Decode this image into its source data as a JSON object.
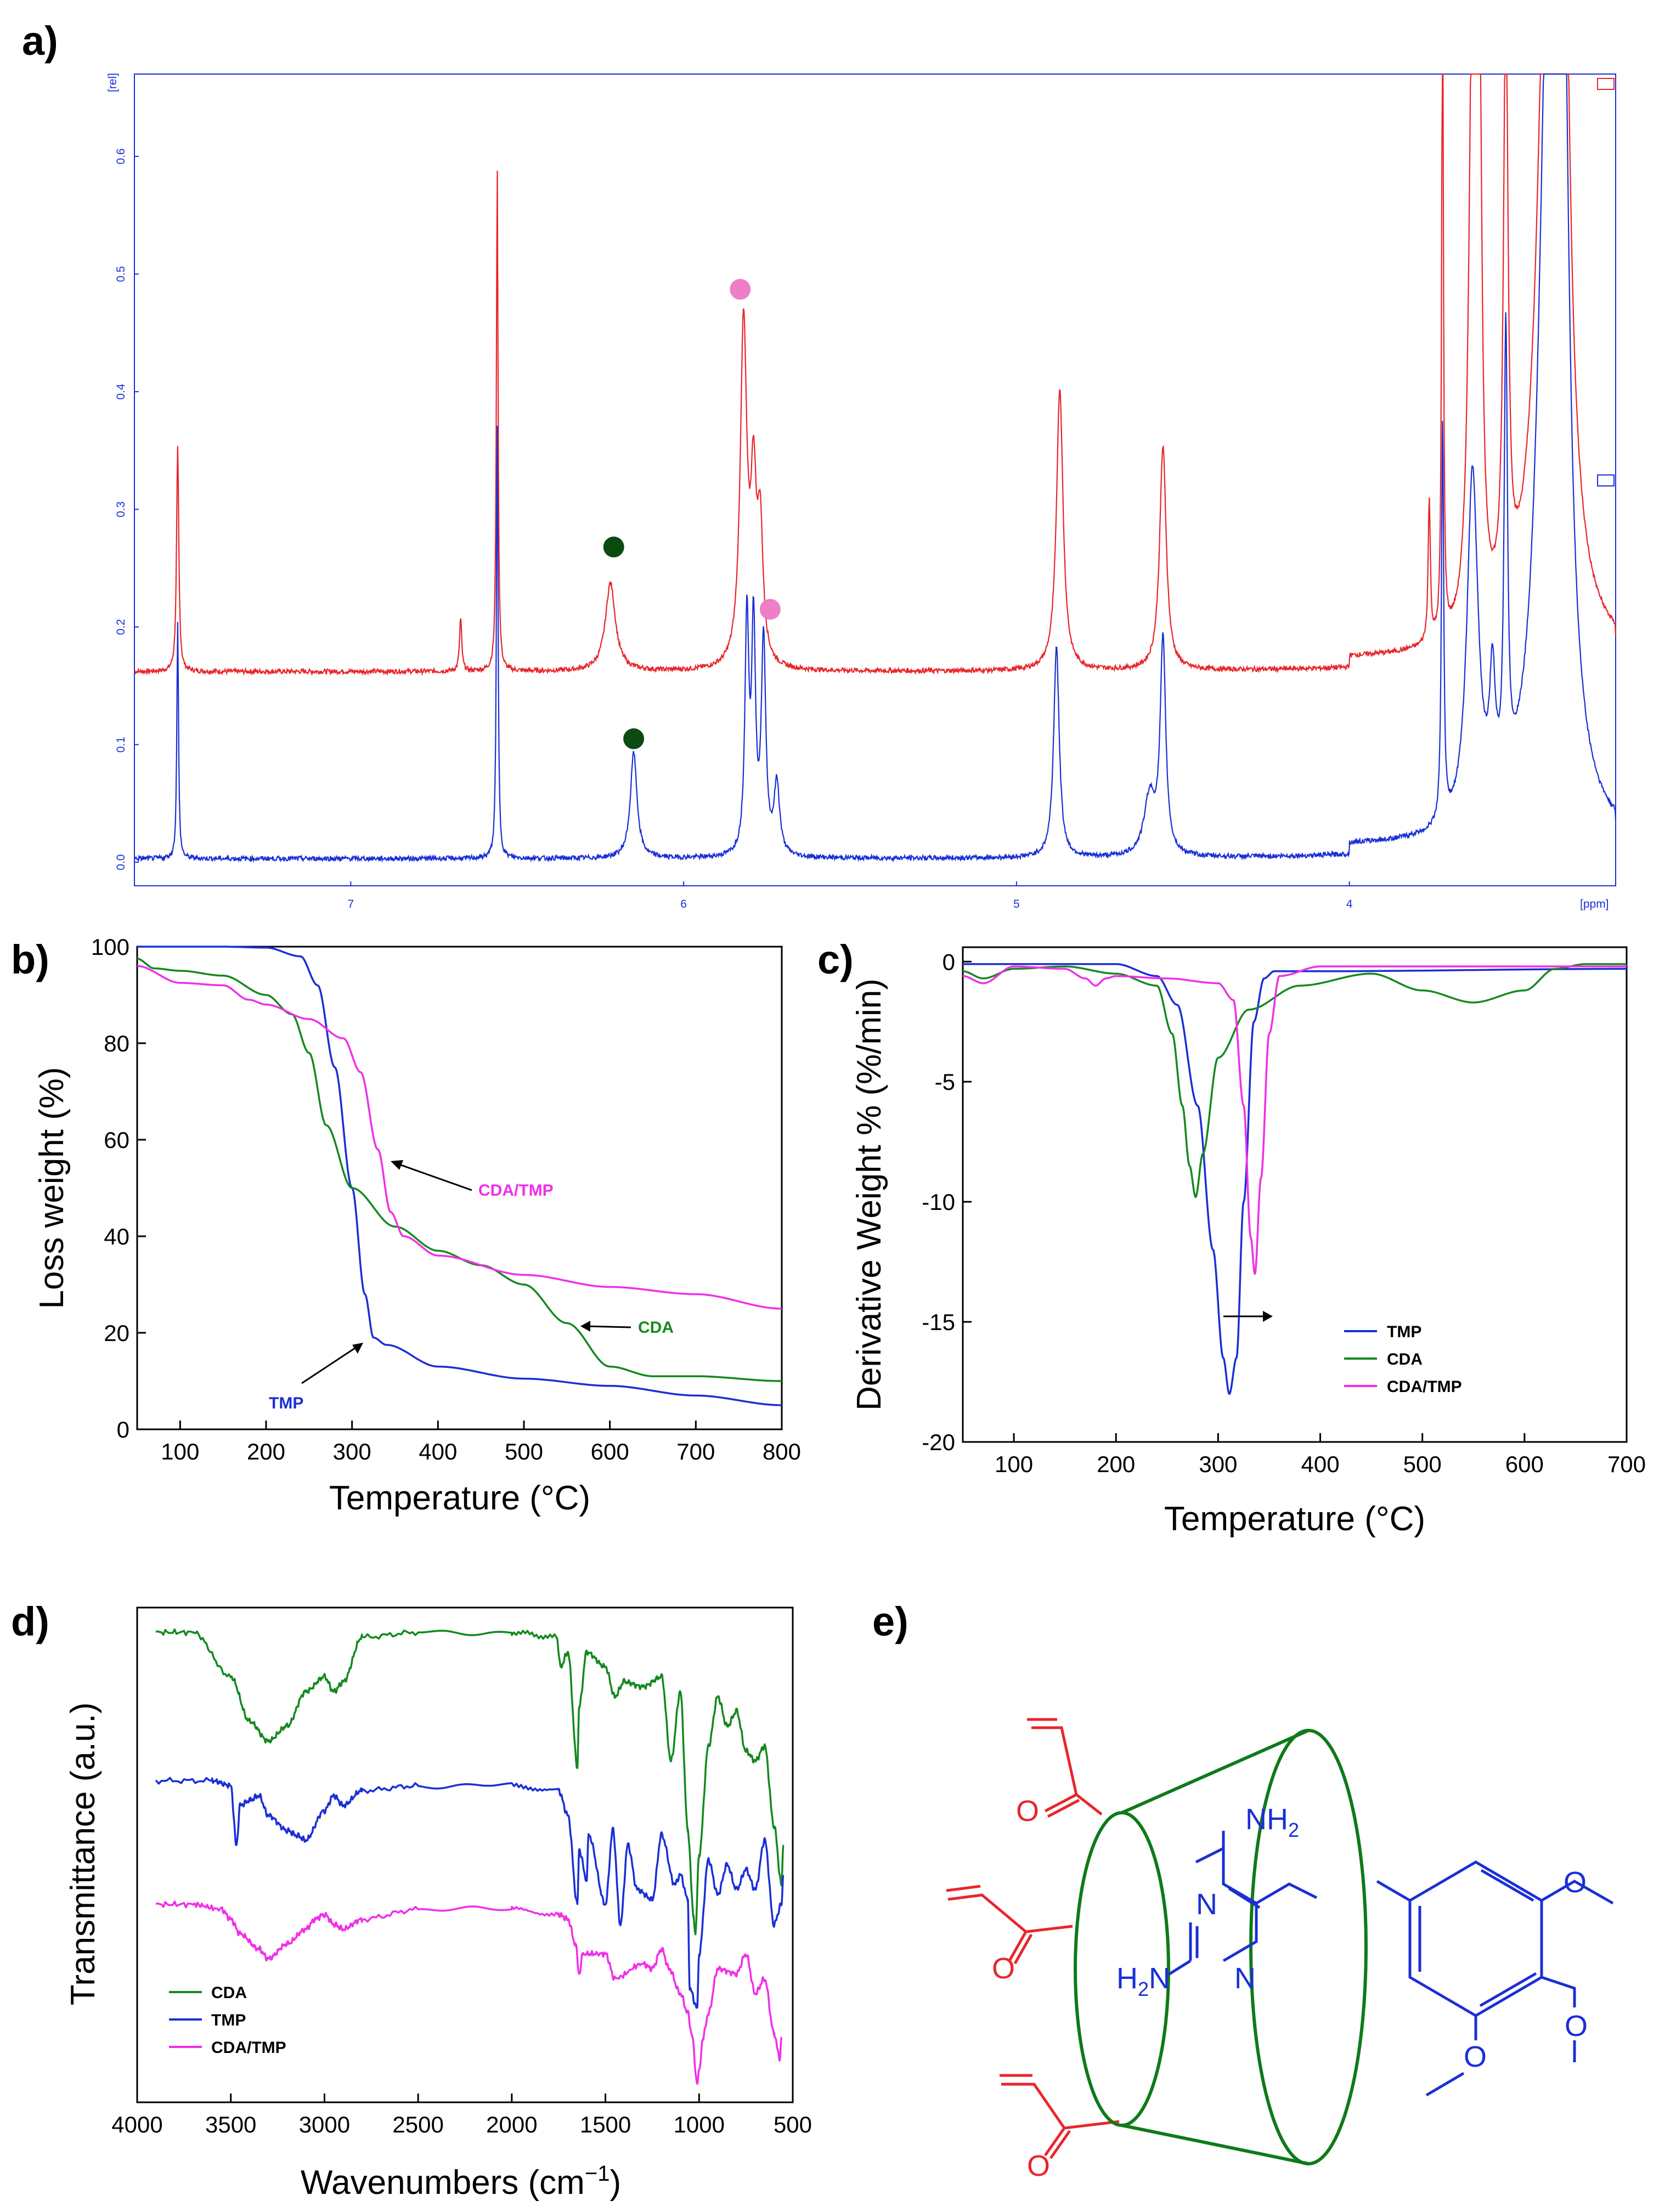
{
  "panels": {
    "a": "a)",
    "b": "b)",
    "c": "c)",
    "d": "d)",
    "e": "e)"
  },
  "colors": {
    "red": "#e8262b",
    "blue": "#1a2fd6",
    "green": "#14891e",
    "magenta": "#f02fe8",
    "dark_green": "#0b4b12",
    "pink": "#ee7fc7",
    "molecule_green": "#0f7a1a"
  },
  "chart_data": [
    {
      "id": "a",
      "type": "line",
      "title": "",
      "xlabel": "[ppm]",
      "ylabel": "[rel]",
      "xlim": [
        7.65,
        3.2
      ],
      "ylim": [
        -0.02,
        0.67
      ],
      "x_reversed": true,
      "xticks": [
        7,
        6,
        5,
        4
      ],
      "yticks": [
        0.0,
        0.1,
        0.2,
        0.3,
        0.4,
        0.5,
        0.6
      ],
      "ytick_labels": [
        "0.0",
        "0.1",
        "0.2",
        "0.3",
        "0.4",
        "0.5",
        "0.6"
      ],
      "series": [
        {
          "name": "upper spectrum",
          "color": "red",
          "baseline": 0.162,
          "peaks": [
            [
              7.52,
              0.19,
              0.004
            ],
            [
              6.67,
              0.045,
              0.004
            ],
            [
              6.56,
              0.43,
              0.003
            ],
            [
              6.22,
              0.075,
              0.018
            ],
            [
              5.82,
              0.29,
              0.012
            ],
            [
              5.79,
              0.14,
              0.01
            ],
            [
              5.77,
              0.11,
              0.01
            ],
            [
              4.87,
              0.24,
              0.012
            ],
            [
              4.56,
              0.19,
              0.012
            ],
            [
              3.76,
              0.12,
              0.004
            ],
            [
              3.72,
              0.6,
              0.003
            ],
            [
              3.63,
              0.55,
              0.012
            ],
            [
              3.61,
              0.5,
              0.008
            ],
            [
              3.53,
              0.52,
              0.008
            ],
            [
              3.4,
              0.7,
              0.035
            ],
            [
              3.36,
              0.6,
              0.02
            ]
          ]
        },
        {
          "name": "lower spectrum",
          "color": "blue",
          "baseline": 0.003,
          "peaks": [
            [
              7.52,
              0.2,
              0.003
            ],
            [
              6.56,
              0.37,
              0.003
            ],
            [
              6.15,
              0.09,
              0.012
            ],
            [
              5.81,
              0.2,
              0.007
            ],
            [
              5.79,
              0.19,
              0.007
            ],
            [
              5.76,
              0.18,
              0.008
            ],
            [
              5.72,
              0.06,
              0.01
            ],
            [
              4.88,
              0.18,
              0.01
            ],
            [
              4.56,
              0.18,
              0.01
            ],
            [
              4.6,
              0.05,
              0.02
            ],
            [
              3.72,
              0.34,
              0.004
            ],
            [
              3.63,
              0.3,
              0.02
            ],
            [
              3.57,
              0.1,
              0.01
            ],
            [
              3.53,
              0.38,
              0.006
            ],
            [
              3.4,
              0.72,
              0.035
            ],
            [
              3.36,
              0.62,
              0.02
            ]
          ]
        }
      ],
      "markers": [
        {
          "x": 6.21,
          "y": 0.268,
          "color": "dark_green"
        },
        {
          "x": 6.15,
          "y": 0.105,
          "color": "dark_green"
        },
        {
          "x": 5.83,
          "y": 0.487,
          "color": "pink"
        },
        {
          "x": 5.74,
          "y": 0.215,
          "color": "pink"
        }
      ]
    },
    {
      "id": "b",
      "type": "line",
      "title": "",
      "xlabel": "Temperature (°C)",
      "ylabel": "Loss weight  (%)",
      "xlim": [
        50,
        800
      ],
      "ylim": [
        0,
        100
      ],
      "xticks": [
        100,
        200,
        300,
        400,
        500,
        600,
        700,
        800
      ],
      "yticks": [
        0,
        20,
        40,
        60,
        80,
        100
      ],
      "series": [
        {
          "name": "TMP",
          "color": "blue",
          "x": [
            50,
            150,
            200,
            240,
            260,
            280,
            300,
            315,
            325,
            340,
            400,
            500,
            600,
            700,
            800
          ],
          "y": [
            100,
            100,
            99.8,
            98,
            92,
            75,
            50,
            28,
            19,
            17.5,
            13,
            10.5,
            9,
            7,
            5
          ]
        },
        {
          "name": "CDA",
          "color": "green",
          "x": [
            50,
            70,
            100,
            150,
            200,
            230,
            250,
            270,
            300,
            350,
            400,
            450,
            500,
            550,
            600,
            650,
            700,
            800
          ],
          "y": [
            97.5,
            95.5,
            95,
            94,
            90,
            86,
            78,
            63,
            50,
            42,
            37,
            34,
            30,
            22,
            13,
            11,
            11,
            10
          ]
        },
        {
          "name": "CDA/TMP",
          "color": "magenta",
          "x": [
            50,
            100,
            150,
            180,
            200,
            250,
            290,
            310,
            330,
            345,
            360,
            400,
            500,
            600,
            700,
            800
          ],
          "y": [
            96,
            92.5,
            92,
            89,
            88,
            85,
            81,
            74,
            58,
            45,
            40,
            36,
            32,
            29.5,
            28,
            25
          ]
        }
      ],
      "annotations": [
        {
          "text": "CDA/TMP",
          "color": "magenta"
        },
        {
          "text": "CDA",
          "color": "green"
        },
        {
          "text": "TMP",
          "color": "blue"
        }
      ]
    },
    {
      "id": "c",
      "type": "line",
      "title": "",
      "xlabel": "Temperature (°C)",
      "ylabel": "Derivative Weight % (%/min)",
      "xlim": [
        50,
        700
      ],
      "ylim": [
        -20,
        0.6
      ],
      "xticks": [
        100,
        200,
        300,
        400,
        500,
        600,
        700
      ],
      "yticks": [
        -20,
        -15,
        -10,
        -5,
        0
      ],
      "series": [
        {
          "name": "TMP",
          "color": "blue",
          "x": [
            50,
            200,
            240,
            260,
            280,
            295,
            305,
            311,
            318,
            325,
            335,
            345,
            355,
            400,
            700
          ],
          "y": [
            -0.1,
            -0.1,
            -0.6,
            -1.8,
            -6,
            -12,
            -16.5,
            -18,
            -16.5,
            -10,
            -2.5,
            -0.7,
            -0.4,
            -0.4,
            -0.3
          ]
        },
        {
          "name": "CDA",
          "color": "green",
          "x": [
            50,
            70,
            100,
            150,
            200,
            240,
            255,
            265,
            272,
            278,
            285,
            300,
            330,
            380,
            450,
            500,
            550,
            600,
            630,
            660,
            700
          ],
          "y": [
            -0.4,
            -0.7,
            -0.3,
            -0.2,
            -0.5,
            -1,
            -3,
            -6,
            -8.5,
            -9.8,
            -8,
            -4,
            -2,
            -1,
            -0.5,
            -1.2,
            -1.7,
            -1.2,
            -0.3,
            -0.1,
            -0.1
          ]
        },
        {
          "name": "CDA/TMP",
          "color": "magenta",
          "x": [
            50,
            70,
            100,
            150,
            170,
            180,
            190,
            200,
            250,
            300,
            315,
            325,
            332,
            336,
            342,
            350,
            360,
            400,
            700
          ],
          "y": [
            -0.6,
            -0.9,
            -0.2,
            -0.3,
            -0.7,
            -1,
            -0.7,
            -0.6,
            -0.7,
            -0.9,
            -1.6,
            -6,
            -11.5,
            -13,
            -9,
            -3,
            -0.6,
            -0.2,
            -0.2
          ]
        }
      ],
      "legend": {
        "position": "lower-right",
        "entries": [
          "TMP",
          "CDA",
          "CDA/TMP"
        ]
      }
    },
    {
      "id": "d",
      "type": "line",
      "title": "",
      "xlabel": "Wavenumbers (cm",
      "xlabel_sup": "−1",
      "xlabel_tail": ")",
      "ylabel": "Transmittance (a.u.)",
      "xlim": [
        4000,
        500
      ],
      "ylim": [
        0,
        100
      ],
      "xticks": [
        4000,
        3500,
        3000,
        2500,
        2000,
        1500,
        1000,
        500
      ],
      "series": [
        {
          "name": "CDA",
          "color": "green",
          "x": [
            3900,
            3700,
            3500,
            3400,
            3300,
            3200,
            3100,
            3000,
            2950,
            2900,
            2800,
            2500,
            2000,
            1760,
            1740,
            1700,
            1650,
            1640,
            1600,
            1500,
            1450,
            1400,
            1300,
            1200,
            1150,
            1100,
            1060,
            1030,
            1020,
            1000,
            950,
            900,
            850,
            800,
            750,
            700,
            650,
            600,
            560,
            550
          ],
          "y": [
            95,
            95,
            86,
            77,
            73,
            76,
            83,
            86,
            83,
            85,
            94,
            95,
            95,
            94,
            88,
            91,
            68,
            80,
            91,
            88,
            82,
            85,
            84,
            86,
            69,
            83,
            55,
            38,
            34,
            50,
            72,
            82,
            76,
            79,
            71,
            69,
            72,
            56,
            44,
            52
          ]
        },
        {
          "name": "TMP",
          "color": "blue",
          "x": [
            3900,
            3600,
            3500,
            3470,
            3450,
            3400,
            3350,
            3300,
            3200,
            3150,
            3100,
            3000,
            2950,
            2900,
            2800,
            2500,
            2000,
            1750,
            1700,
            1650,
            1640,
            1600,
            1590,
            1500,
            1460,
            1420,
            1380,
            1330,
            1250,
            1200,
            1130,
            1100,
            1060,
            1050,
            1010,
            1000,
            950,
            900,
            850,
            800,
            750,
            700,
            650,
            600,
            560,
            550
          ],
          "y": [
            65,
            65,
            64,
            52,
            60,
            61,
            62,
            58,
            55,
            54,
            53,
            59,
            62,
            60,
            63,
            64,
            64,
            63,
            58,
            40,
            51,
            45,
            54,
            40,
            55,
            36,
            52,
            43,
            41,
            54,
            44,
            46,
            41,
            23,
            19,
            30,
            49,
            42,
            48,
            43,
            47,
            43,
            53,
            36,
            40,
            46
          ]
        },
        {
          "name": "CDA/TMP",
          "color": "magenta",
          "x": [
            3900,
            3700,
            3550,
            3500,
            3450,
            3350,
            3300,
            3200,
            3100,
            3050,
            3000,
            2950,
            2900,
            2800,
            2500,
            2000,
            1750,
            1700,
            1660,
            1640,
            1620,
            1500,
            1450,
            1300,
            1250,
            1200,
            1160,
            1100,
            1060,
            1040,
            1010,
            1000,
            980,
            950,
            900,
            800,
            750,
            700,
            650,
            600,
            570,
            560
          ],
          "y": [
            40,
            40,
            39,
            37,
            34,
            31,
            29,
            32,
            35,
            37,
            38,
            36,
            35,
            37,
            39,
            39,
            38,
            37,
            32,
            26,
            30,
            30,
            25,
            28,
            27,
            31,
            27,
            22,
            18,
            14,
            4,
            6,
            13,
            18,
            27,
            26,
            30,
            22,
            25,
            14,
            9,
            13
          ]
        }
      ],
      "legend": {
        "position": "lower-left",
        "entries": [
          "CDA",
          "TMP",
          "CDA/TMP"
        ]
      }
    }
  ],
  "panel_b_ticks": [
    "100",
    "200",
    "300",
    "400",
    "500",
    "600",
    "700",
    "800"
  ],
  "panel_b_yticks": [
    "0",
    "20",
    "40",
    "60",
    "80",
    "100"
  ],
  "panel_c_ticks": [
    "100",
    "200",
    "300",
    "400",
    "500",
    "600",
    "700"
  ],
  "panel_c_yticks": [
    "-20",
    "-15",
    "-10",
    "-5",
    "0"
  ],
  "panel_d_ticks": [
    "4000",
    "3500",
    "3000",
    "2500",
    "2000",
    "1500",
    "1000",
    "500"
  ],
  "molecule": {
    "N": "N",
    "NH2_text": "NH",
    "NH2_sub": "2",
    "H2N_text": "H",
    "H2N_sub": "2",
    "H2N_N": "N",
    "O": "O"
  }
}
